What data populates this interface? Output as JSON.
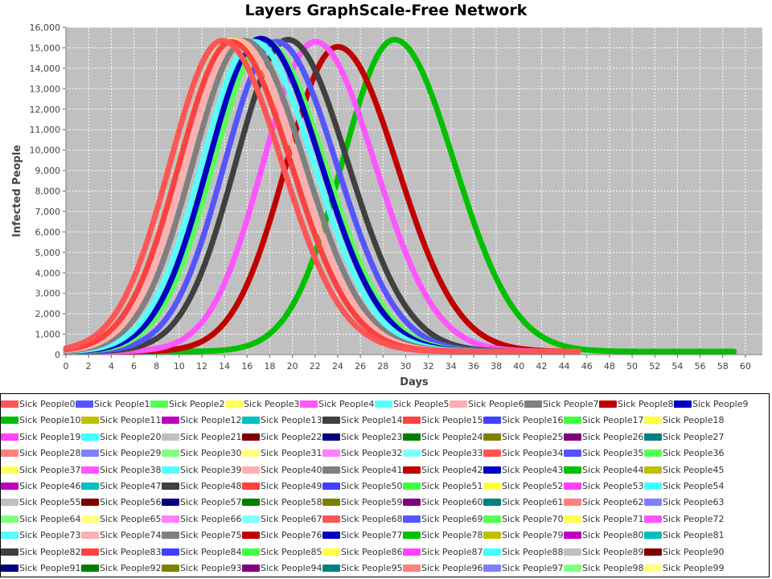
{
  "chart_data": {
    "type": "line",
    "title": "Layers GraphScale-Free Network",
    "xlabel": "Days",
    "ylabel": "Infected People",
    "xlim": [
      0,
      61.5
    ],
    "ylim": [
      0,
      16000
    ],
    "x_ticks": [
      0,
      2,
      4,
      6,
      8,
      10,
      12,
      14,
      16,
      18,
      20,
      22,
      24,
      26,
      28,
      30,
      32,
      34,
      36,
      38,
      40,
      42,
      44,
      46,
      48,
      50,
      52,
      54,
      56,
      58,
      60
    ],
    "y_ticks": [
      0,
      1000,
      2000,
      3000,
      4000,
      5000,
      6000,
      7000,
      8000,
      9000,
      10000,
      11000,
      12000,
      13000,
      14000,
      15000,
      16000
    ],
    "y_tick_labels": [
      "0",
      "1,000",
      "2,000",
      "3,000",
      "4,000",
      "5,000",
      "6,000",
      "7,000",
      "8,000",
      "9,000",
      "10,000",
      "11,000",
      "12,000",
      "13,000",
      "14,000",
      "15,000",
      "16,000"
    ],
    "grid": true,
    "legend_position": "bottom",
    "plot_background": "#c0c0c0",
    "series_shape": "epidemic curves; each series rises from about 150 infected at day 0, peaks near 15,300 and decays back to about 150",
    "series": [
      {
        "name": "Sick People0",
        "color": "#ff5555",
        "peak_day": 13.8,
        "peak": 15350,
        "end_day": 45.3
      },
      {
        "name": "Sick People1",
        "color": "#5555ff",
        "peak_day": 18.6,
        "peak": 15300,
        "end_day": 45.3
      },
      {
        "name": "Sick People2",
        "color": "#55ff55",
        "peak_day": 17.6,
        "peak": 15300,
        "end_day": 45.3
      },
      {
        "name": "Sick People3",
        "color": "#ffff55",
        "peak_day": 14.6,
        "peak": 15350,
        "end_day": 45.3
      },
      {
        "name": "Sick People4",
        "color": "#ff55ff",
        "peak_day": 22.0,
        "peak": 15300,
        "end_day": 45.3
      },
      {
        "name": "Sick People5",
        "color": "#55ffff",
        "peak_day": 16.6,
        "peak": 15300,
        "end_day": 45.3
      },
      {
        "name": "Sick People6",
        "color": "#ffafaf",
        "peak_day": 15.2,
        "peak": 15350,
        "end_day": 45.3
      },
      {
        "name": "Sick People7",
        "color": "#808080",
        "peak_day": 15.8,
        "peak": 15350,
        "end_day": 45.3
      },
      {
        "name": "Sick People8",
        "color": "#c00000",
        "peak_day": 24.0,
        "peak": 15050,
        "end_day": 45.3
      },
      {
        "name": "Sick People9",
        "color": "#0000c0",
        "peak_day": 17.2,
        "peak": 15450,
        "end_day": 45.3
      },
      {
        "name": "Sick People10",
        "color": "#00c000",
        "peak_day": 29.0,
        "peak": 15400,
        "end_day": 59.2
      },
      {
        "name": "Sick People14",
        "color": "#404040",
        "peak_day": 19.6,
        "peak": 15400,
        "end_day": 45.3
      },
      {
        "name": "Sick People15",
        "color": "#ff4040",
        "peak_day": 14.6,
        "peak": 15300,
        "end_day": 45.3
      }
    ],
    "legend_entries": [
      {
        "name": "Sick People0",
        "color": "#ff5555"
      },
      {
        "name": "Sick People1",
        "color": "#5555ff"
      },
      {
        "name": "Sick People2",
        "color": "#55ff55"
      },
      {
        "name": "Sick People3",
        "color": "#ffff55"
      },
      {
        "name": "Sick People4",
        "color": "#ff55ff"
      },
      {
        "name": "Sick People5",
        "color": "#55ffff"
      },
      {
        "name": "Sick People6",
        "color": "#ffafaf"
      },
      {
        "name": "Sick People7",
        "color": "#808080"
      },
      {
        "name": "Sick People8",
        "color": "#c00000"
      },
      {
        "name": "Sick People9",
        "color": "#0000c0"
      },
      {
        "name": "Sick People10",
        "color": "#00c000"
      },
      {
        "name": "Sick People11",
        "color": "#c0c000"
      },
      {
        "name": "Sick People12",
        "color": "#c000c0"
      },
      {
        "name": "Sick People13",
        "color": "#00c0c0"
      },
      {
        "name": "Sick People14",
        "color": "#404040"
      },
      {
        "name": "Sick People15",
        "color": "#ff4040"
      },
      {
        "name": "Sick People16",
        "color": "#4040ff"
      },
      {
        "name": "Sick People17",
        "color": "#40ff40"
      },
      {
        "name": "Sick People18",
        "color": "#ffff40"
      },
      {
        "name": "Sick People19",
        "color": "#ff40ff"
      },
      {
        "name": "Sick People20",
        "color": "#40ffff"
      },
      {
        "name": "Sick People21",
        "color": "#c0c0c0"
      },
      {
        "name": "Sick People22",
        "color": "#800000"
      },
      {
        "name": "Sick People23",
        "color": "#000080"
      },
      {
        "name": "Sick People24",
        "color": "#008000"
      },
      {
        "name": "Sick People25",
        "color": "#808000"
      },
      {
        "name": "Sick People26",
        "color": "#800080"
      },
      {
        "name": "Sick People27",
        "color": "#008080"
      },
      {
        "name": "Sick People28",
        "color": "#ff8080"
      },
      {
        "name": "Sick People29",
        "color": "#8080ff"
      },
      {
        "name": "Sick People30",
        "color": "#80ff80"
      },
      {
        "name": "Sick People31",
        "color": "#ffff80"
      },
      {
        "name": "Sick People32",
        "color": "#ff80ff"
      },
      {
        "name": "Sick People33",
        "color": "#80ffff"
      },
      {
        "name": "Sick People34",
        "color": "#ff5555"
      },
      {
        "name": "Sick People35",
        "color": "#5555ff"
      },
      {
        "name": "Sick People36",
        "color": "#55ff55"
      },
      {
        "name": "Sick People37",
        "color": "#ffff55"
      },
      {
        "name": "Sick People38",
        "color": "#ff55ff"
      },
      {
        "name": "Sick People39",
        "color": "#55ffff"
      },
      {
        "name": "Sick People40",
        "color": "#ffafaf"
      },
      {
        "name": "Sick People41",
        "color": "#808080"
      },
      {
        "name": "Sick People42",
        "color": "#c00000"
      },
      {
        "name": "Sick People43",
        "color": "#0000c0"
      },
      {
        "name": "Sick People44",
        "color": "#00c000"
      },
      {
        "name": "Sick People45",
        "color": "#c0c000"
      },
      {
        "name": "Sick People46",
        "color": "#c000c0"
      },
      {
        "name": "Sick People47",
        "color": "#00c0c0"
      },
      {
        "name": "Sick People48",
        "color": "#404040"
      },
      {
        "name": "Sick People49",
        "color": "#ff4040"
      },
      {
        "name": "Sick People50",
        "color": "#4040ff"
      },
      {
        "name": "Sick People51",
        "color": "#40ff40"
      },
      {
        "name": "Sick People52",
        "color": "#ffff40"
      },
      {
        "name": "Sick People53",
        "color": "#ff40ff"
      },
      {
        "name": "Sick People54",
        "color": "#40ffff"
      },
      {
        "name": "Sick People55",
        "color": "#c0c0c0"
      },
      {
        "name": "Sick People56",
        "color": "#800000"
      },
      {
        "name": "Sick People57",
        "color": "#000080"
      },
      {
        "name": "Sick People58",
        "color": "#008000"
      },
      {
        "name": "Sick People59",
        "color": "#808000"
      },
      {
        "name": "Sick People60",
        "color": "#800080"
      },
      {
        "name": "Sick People61",
        "color": "#008080"
      },
      {
        "name": "Sick People62",
        "color": "#ff8080"
      },
      {
        "name": "Sick People63",
        "color": "#8080ff"
      },
      {
        "name": "Sick People64",
        "color": "#80ff80"
      },
      {
        "name": "Sick People65",
        "color": "#ffff80"
      },
      {
        "name": "Sick People66",
        "color": "#ff80ff"
      },
      {
        "name": "Sick People67",
        "color": "#80ffff"
      },
      {
        "name": "Sick People68",
        "color": "#ff5555"
      },
      {
        "name": "Sick People69",
        "color": "#5555ff"
      },
      {
        "name": "Sick People70",
        "color": "#55ff55"
      },
      {
        "name": "Sick People71",
        "color": "#ffff55"
      },
      {
        "name": "Sick People72",
        "color": "#ff55ff"
      },
      {
        "name": "Sick People73",
        "color": "#55ffff"
      },
      {
        "name": "Sick People74",
        "color": "#ffafaf"
      },
      {
        "name": "Sick People75",
        "color": "#808080"
      },
      {
        "name": "Sick People76",
        "color": "#c00000"
      },
      {
        "name": "Sick People77",
        "color": "#0000c0"
      },
      {
        "name": "Sick People78",
        "color": "#00c000"
      },
      {
        "name": "Sick People79",
        "color": "#c0c000"
      },
      {
        "name": "Sick People80",
        "color": "#c000c0"
      },
      {
        "name": "Sick People81",
        "color": "#00c0c0"
      },
      {
        "name": "Sick People82",
        "color": "#404040"
      },
      {
        "name": "Sick People83",
        "color": "#ff4040"
      },
      {
        "name": "Sick People84",
        "color": "#4040ff"
      },
      {
        "name": "Sick People85",
        "color": "#40ff40"
      },
      {
        "name": "Sick People86",
        "color": "#ffff40"
      },
      {
        "name": "Sick People87",
        "color": "#ff40ff"
      },
      {
        "name": "Sick People88",
        "color": "#40ffff"
      },
      {
        "name": "Sick People89",
        "color": "#c0c0c0"
      },
      {
        "name": "Sick People90",
        "color": "#800000"
      },
      {
        "name": "Sick People91",
        "color": "#000080"
      },
      {
        "name": "Sick People92",
        "color": "#008000"
      },
      {
        "name": "Sick People93",
        "color": "#808000"
      },
      {
        "name": "Sick People94",
        "color": "#800080"
      },
      {
        "name": "Sick People95",
        "color": "#008080"
      },
      {
        "name": "Sick People96",
        "color": "#ff8080"
      },
      {
        "name": "Sick People97",
        "color": "#8080ff"
      },
      {
        "name": "Sick People98",
        "color": "#80ff80"
      },
      {
        "name": "Sick People99",
        "color": "#ffff80"
      }
    ]
  }
}
